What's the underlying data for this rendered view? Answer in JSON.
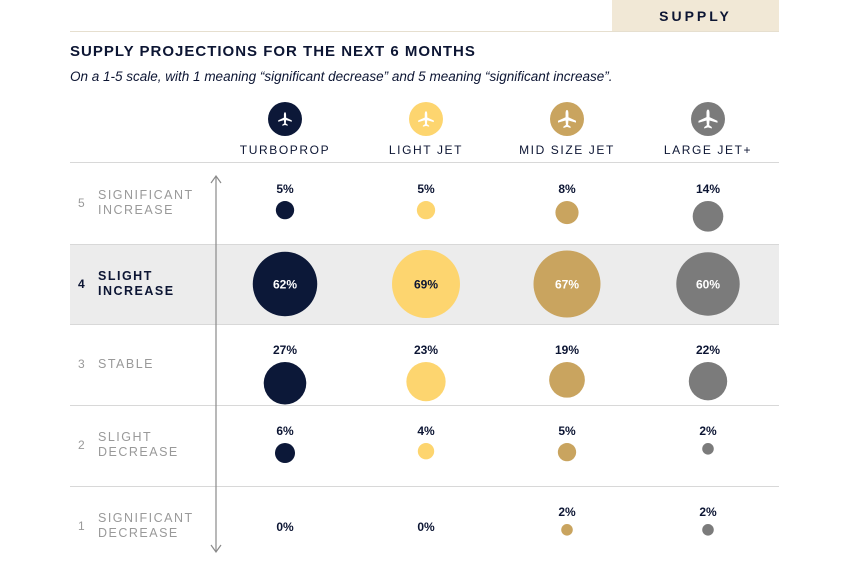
{
  "header": {
    "section_tab": "SUPPLY"
  },
  "chart_data": {
    "type": "bubble",
    "title": "SUPPLY PROJECTIONS FOR THE NEXT 6 MONTHS",
    "subtitle": "On a 1-5 scale, with 1 meaning “significant decrease” and 5 meaning “significant increase”.",
    "rows": [
      {
        "score": "5",
        "label": "SIGNIFICANT\nINCREASE",
        "highlight": false
      },
      {
        "score": "4",
        "label": "SLIGHT\nINCREASE",
        "highlight": true
      },
      {
        "score": "3",
        "label": "STABLE",
        "highlight": false
      },
      {
        "score": "2",
        "label": "SLIGHT\nDECREASE",
        "highlight": false
      },
      {
        "score": "1",
        "label": "SIGNIFICANT\nDECREASE",
        "highlight": false
      }
    ],
    "series": [
      {
        "name": "TURBOPROP",
        "color": "#0c1838",
        "icon": "turboprop-plane-icon",
        "values": [
          5,
          62,
          27,
          6,
          0
        ],
        "labels": [
          "5%",
          "62%",
          "27%",
          "6%",
          "0%"
        ]
      },
      {
        "name": "LIGHT JET",
        "color": "#fdd56f",
        "icon": "light-jet-plane-icon",
        "values": [
          5,
          69,
          23,
          4,
          0
        ],
        "labels": [
          "5%",
          "69%",
          "23%",
          "4%",
          "0%"
        ]
      },
      {
        "name": "MID SIZE JET",
        "color": "#c9a45f",
        "icon": "mid-size-jet-plane-icon",
        "values": [
          8,
          67,
          19,
          5,
          2
        ],
        "labels": [
          "8%",
          "67%",
          "19%",
          "5%",
          "2%"
        ]
      },
      {
        "name": "LARGE JET+",
        "color": "#7b7b7b",
        "icon": "large-jet-plane-icon",
        "values": [
          14,
          60,
          22,
          2,
          2
        ],
        "labels": [
          "14%",
          "60%",
          "22%",
          "2%",
          "2%"
        ]
      }
    ]
  }
}
